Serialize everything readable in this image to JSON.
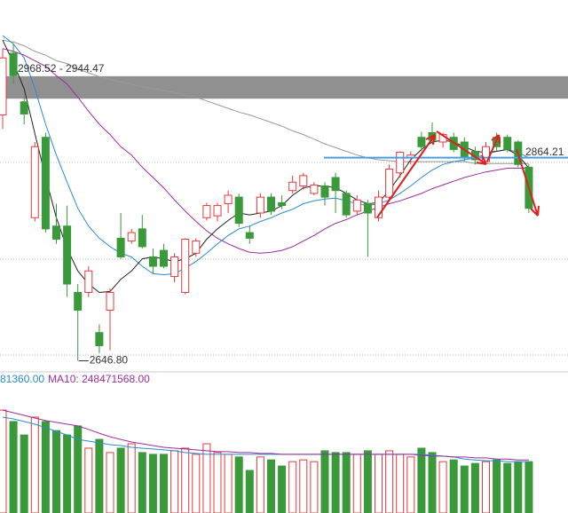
{
  "chart_data": [
    {
      "type": "candlestick",
      "up_color": "#e8383d",
      "down_color": "#3a9a3a",
      "ylim": [
        2634,
        3033
      ],
      "open": [
        2910,
        2976,
        2924,
        2800,
        2886,
        2791,
        2791,
        2720,
        2720,
        2677,
        2701,
        2778,
        2775,
        2788,
        2758,
        2765,
        2737,
        2720,
        2762,
        2800,
        2802,
        2815,
        2822,
        2784,
        2805,
        2822,
        2816,
        2829,
        2834,
        2826,
        2834,
        2843,
        2826,
        2807,
        2815,
        2800,
        2822,
        2848,
        2864,
        2886,
        2891,
        2881,
        2886,
        2881,
        2871,
        2860,
        2886,
        2886,
        2881,
        2854
      ],
      "high": [
        2981,
        2986,
        2930,
        2881,
        2891,
        2815,
        2813,
        2729,
        2748,
        2686,
        2724,
        2805,
        2788,
        2803,
        2767,
        2772,
        2762,
        2778,
        2778,
        2816,
        2816,
        2829,
        2826,
        2791,
        2826,
        2826,
        2824,
        2845,
        2848,
        2838,
        2838,
        2848,
        2829,
        2824,
        2819,
        2829,
        2857,
        2871,
        2871,
        2892,
        2902,
        2891,
        2891,
        2886,
        2876,
        2881,
        2891,
        2889,
        2883,
        2857
      ],
      "low": [
        2895,
        2943,
        2900,
        2796,
        2784,
        2772,
        2715,
        2646.8,
        2715,
        2655,
        2658,
        2756,
        2772,
        2767,
        2740,
        2746,
        2731,
        2718,
        2758,
        2797,
        2796,
        2805,
        2790,
        2772,
        2800,
        2803,
        2809,
        2826,
        2830,
        2824,
        2813,
        2805,
        2800,
        2803,
        2758,
        2796,
        2818,
        2843,
        2857,
        2871,
        2879,
        2875,
        2870,
        2860,
        2857,
        2857,
        2871,
        2870,
        2854,
        2805
      ],
      "close": [
        2971,
        2952,
        2911,
        2876,
        2788,
        2777,
        2729,
        2701,
        2743,
        2663,
        2720,
        2758,
        2784,
        2769,
        2748,
        2748,
        2758,
        2777,
        2775,
        2813,
        2813,
        2824,
        2794,
        2778,
        2822,
        2807,
        2813,
        2838,
        2845,
        2835,
        2822,
        2829,
        2803,
        2819,
        2805,
        2822,
        2852,
        2870,
        2867,
        2876,
        2883,
        2889,
        2873,
        2864,
        2862,
        2876,
        2876,
        2873,
        2857,
        2810
      ],
      "series": [
        {
          "color": "#999999",
          "values": [
            2990,
            2988,
            2984,
            2978,
            2974,
            2968,
            2965,
            2959,
            2955,
            2951,
            2948,
            2945,
            2943,
            2940,
            2938,
            2936,
            2934,
            2931,
            2929,
            2925,
            2921,
            2917,
            2913,
            2910,
            2906,
            2902,
            2898,
            2893,
            2889,
            2884,
            2879,
            2875,
            2871,
            2867,
            2864,
            2862,
            2861,
            2860,
            2860,
            2860,
            2860,
            2860,
            2860,
            2860,
            2858,
            2858,
            2858,
            2858,
            2858,
            2858
          ]
        },
        {
          "color": "#9b2d9b",
          "values": [
            2981,
            2978,
            2974,
            2968,
            2962,
            2952,
            2943,
            2929,
            2914,
            2900,
            2889,
            2876,
            2867,
            2854,
            2843,
            2832,
            2819,
            2807,
            2796,
            2786,
            2778,
            2772,
            2767,
            2763,
            2762,
            2763,
            2765,
            2769,
            2775,
            2781,
            2788,
            2794,
            2798,
            2803,
            2807,
            2811,
            2815,
            2818,
            2822,
            2826,
            2831,
            2835,
            2839,
            2843,
            2846,
            2849,
            2851,
            2853,
            2853,
            2853
          ]
        },
        {
          "color": "#2a8bd0",
          "values": [
            2995,
            2986,
            2971,
            2938,
            2900,
            2867,
            2838,
            2810,
            2791,
            2778,
            2769,
            2762,
            2758,
            2748,
            2740,
            2739,
            2740,
            2746,
            2753,
            2762,
            2772,
            2781,
            2788,
            2791,
            2796,
            2800,
            2805,
            2809,
            2815,
            2818,
            2820,
            2821,
            2818,
            2815,
            2813,
            2815,
            2819,
            2826,
            2834,
            2843,
            2851,
            2857,
            2860,
            2862,
            2864,
            2868,
            2871,
            2873,
            2870,
            2864
          ]
        },
        {
          "color": "#222222",
          "values": [
            2990,
            2966,
            2938,
            2890,
            2843,
            2800,
            2767,
            2743,
            2729,
            2720,
            2721,
            2734,
            2743,
            2756,
            2758,
            2756,
            2753,
            2756,
            2762,
            2777,
            2788,
            2797,
            2805,
            2803,
            2805,
            2807,
            2813,
            2824,
            2832,
            2834,
            2834,
            2832,
            2826,
            2819,
            2815,
            2816,
            2829,
            2845,
            2862,
            2873,
            2881,
            2883,
            2881,
            2876,
            2871,
            2870,
            2871,
            2873,
            2867,
            2853
          ]
        }
      ],
      "band": {
        "label": "2968.52 - 2944.47",
        "values": [
          2968.52,
          2944.47
        ]
      },
      "low_mark": {
        "label": "2646.80",
        "value": 2646.8
      },
      "level_line": {
        "label": "2864.21",
        "value": 2864.21,
        "color": "#4a9fe0"
      }
    },
    {
      "type": "bar",
      "ylim": [
        0,
        500000000
      ],
      "values": [
        418000000,
        379000000,
        333000000,
        394000000,
        379000000,
        348000000,
        333000000,
        364000000,
        288000000,
        318000000,
        273000000,
        288000000,
        303000000,
        273000000,
        267000000,
        267000000,
        279000000,
        288000000,
        267000000,
        303000000,
        273000000,
        267000000,
        258000000,
        212000000,
        258000000,
        248000000,
        227000000,
        242000000,
        248000000,
        242000000,
        279000000,
        273000000,
        273000000,
        267000000,
        279000000,
        267000000,
        279000000,
        267000000,
        258000000,
        288000000,
        273000000,
        242000000,
        248000000,
        227000000,
        236000000,
        242000000,
        248000000,
        236000000,
        242000000,
        242000000
      ],
      "series": [
        {
          "color": "#2a8bd0",
          "values": [
            394000000,
            388000000,
            379000000,
            370000000,
            358000000,
            345000000,
            333000000,
            318000000,
            312000000,
            306000000,
            300000000,
            297000000,
            291000000,
            288000000,
            285000000,
            282000000,
            279000000,
            273000000,
            270000000,
            267000000,
            267000000,
            267000000,
            267000000,
            267000000,
            267000000,
            267000000,
            267000000,
            267000000,
            267000000,
            267000000,
            267000000,
            267000000,
            267000000,
            267000000,
            267000000,
            267000000,
            267000000,
            267000000,
            267000000,
            267000000,
            264000000,
            261000000,
            258000000,
            251000000,
            248000000,
            245000000,
            245000000,
            242000000,
            242000000,
            242000000
          ]
        },
        {
          "color": "#9b2d9b",
          "values": [
            418000000,
            409000000,
            400000000,
            391000000,
            382000000,
            376000000,
            370000000,
            364000000,
            352000000,
            339000000,
            327000000,
            318000000,
            309000000,
            303000000,
            297000000,
            291000000,
            288000000,
            285000000,
            282000000,
            279000000,
            276000000,
            276000000,
            273000000,
            273000000,
            270000000,
            270000000,
            267000000,
            267000000,
            267000000,
            267000000,
            267000000,
            267000000,
            267000000,
            267000000,
            267000000,
            267000000,
            267000000,
            267000000,
            267000000,
            264000000,
            261000000,
            261000000,
            258000000,
            258000000,
            255000000,
            255000000,
            251000000,
            251000000,
            248000000,
            248000000
          ]
        }
      ],
      "legend_texts": [
        {
          "text": "81360.00",
          "color": "#2a8bd0"
        },
        {
          "text": "MA10: 248471568.00",
          "color": "#9b2d9b"
        }
      ]
    }
  ]
}
